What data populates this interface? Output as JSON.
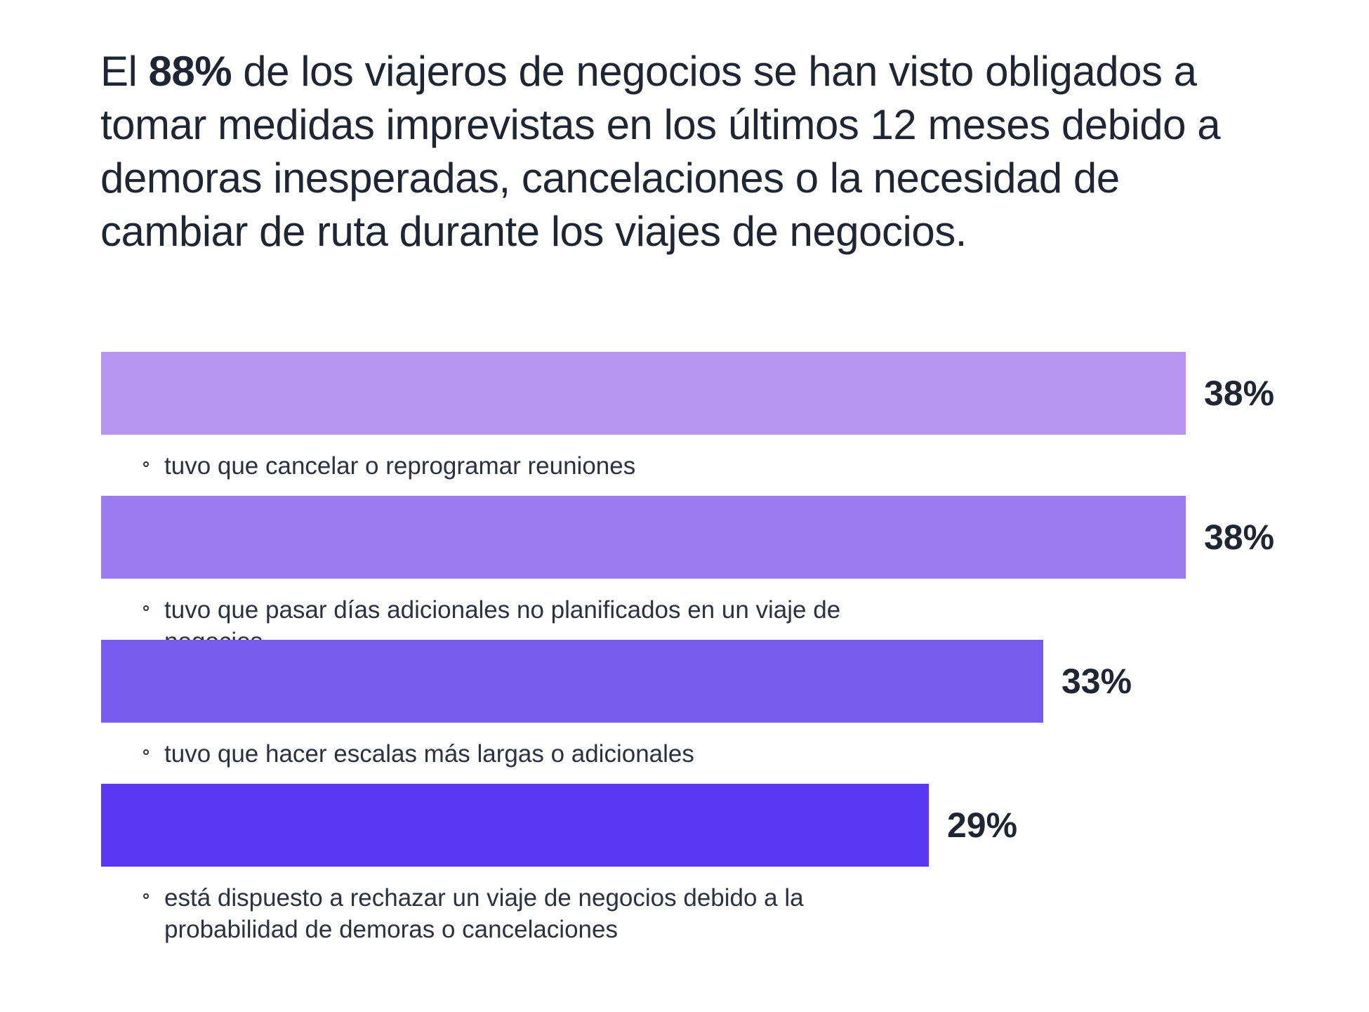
{
  "headline": {
    "prefix": "El ",
    "highlight": "88%",
    "rest": " de los viajeros de negocios se han visto obligados a tomar medidas imprevistas en los últimos 12 meses debido a demoras inesperadas, cancelaciones o la necesidad de cambiar de ruta durante los viajes de negocios."
  },
  "chart_data": {
    "type": "bar",
    "orientation": "horizontal",
    "categories": [
      "tuvo que cancelar o reprogramar reuniones",
      "tuvo que pasar días adicionales no planificados en un viaje de negocios",
      "tuvo que hacer escalas más largas o adicionales",
      "está dispuesto a rechazar un viaje de negocios debido a la probabilidad de demoras o cancelaciones"
    ],
    "values": [
      38,
      38,
      33,
      29
    ],
    "value_labels": [
      "38%",
      "38%",
      "33%",
      "29%"
    ],
    "colors": [
      "#b796f3",
      "#9b7bef",
      "#765cee",
      "#5a37f0"
    ],
    "xlim": [
      0,
      38
    ],
    "grid": false,
    "legend": "none"
  }
}
